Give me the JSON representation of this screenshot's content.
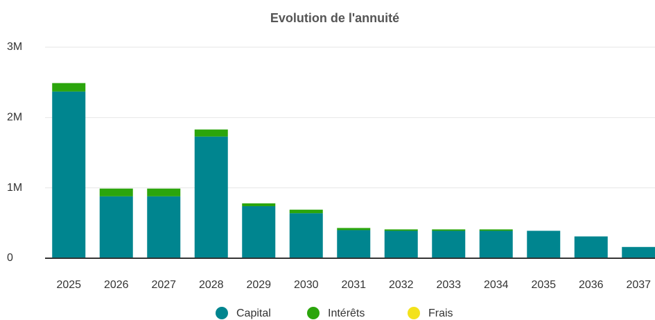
{
  "chart_data": {
    "type": "stacked_bar",
    "title": "Evolution de l'annuité",
    "categories": [
      "2025",
      "2026",
      "2027",
      "2028",
      "2029",
      "2030",
      "2031",
      "2032",
      "2033",
      "2034",
      "2035",
      "2036",
      "2037"
    ],
    "series": [
      {
        "name": "Capital",
        "color": "#00858f",
        "values": [
          2370000,
          880000,
          880000,
          1730000,
          740000,
          640000,
          400000,
          390000,
          390000,
          390000,
          390000,
          310000,
          160000
        ]
      },
      {
        "name": "Intérêts",
        "color": "#2ba50c",
        "values": [
          120000,
          110000,
          110000,
          100000,
          40000,
          50000,
          30000,
          20000,
          20000,
          20000,
          0,
          0,
          0
        ]
      },
      {
        "name": "Frais",
        "color": "#f3e21b",
        "values": [
          0,
          0,
          0,
          0,
          0,
          0,
          0,
          0,
          0,
          0,
          0,
          0,
          0
        ]
      }
    ],
    "ylim": [
      0,
      3000000
    ],
    "yticks": [
      0,
      {
        "value": 1000000,
        "label": "1M"
      },
      {
        "value": 2000000,
        "label": "2M"
      },
      {
        "value": 3000000,
        "label": "3M"
      }
    ],
    "grid": true,
    "legend": "bottom"
  }
}
